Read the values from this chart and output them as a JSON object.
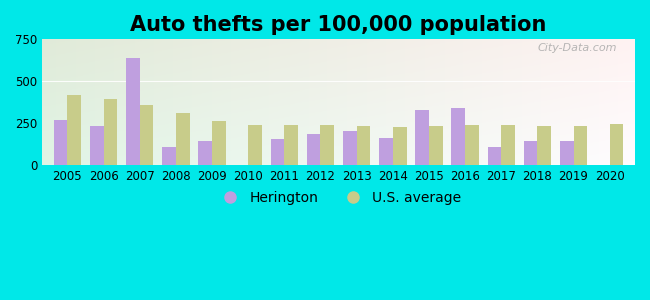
{
  "title": "Auto thefts per 100,000 population",
  "years": [
    2005,
    2006,
    2007,
    2008,
    2009,
    2010,
    2011,
    2012,
    2013,
    2014,
    2015,
    2016,
    2017,
    2018,
    2019,
    2020
  ],
  "herington": [
    270,
    235,
    640,
    110,
    140,
    0,
    155,
    185,
    200,
    160,
    330,
    340,
    110,
    145,
    140,
    0
  ],
  "us_average": [
    415,
    395,
    360,
    310,
    260,
    240,
    240,
    240,
    230,
    225,
    230,
    240,
    240,
    235,
    230,
    245
  ],
  "herington_color": "#bf9fdf",
  "us_avg_color": "#c8cc8a",
  "outer_bg": "#00e8e8",
  "plot_bg_color": "#e8f5ee",
  "ylim": [
    0,
    750
  ],
  "yticks": [
    0,
    250,
    500,
    750
  ],
  "bar_width": 0.38,
  "title_fontsize": 15,
  "legend_fontsize": 10,
  "tick_fontsize": 8.5
}
